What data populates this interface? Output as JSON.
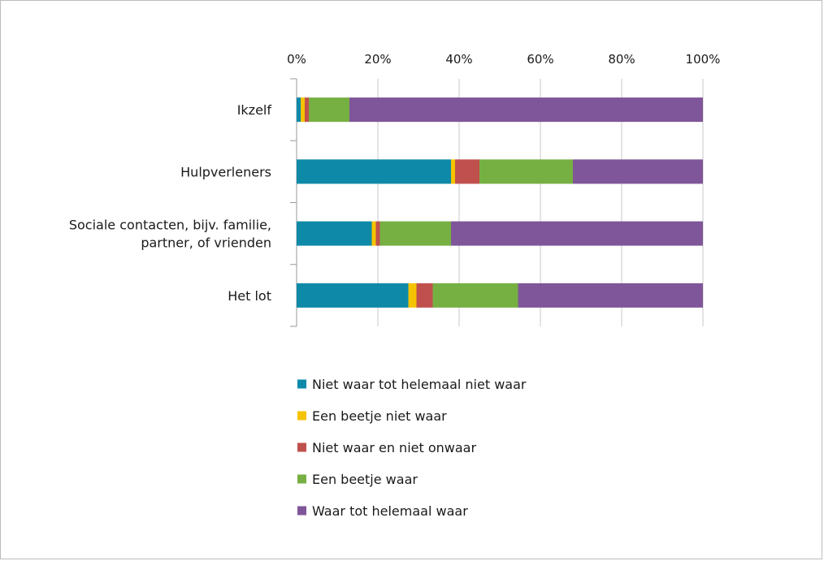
{
  "chart_data": {
    "type": "bar",
    "orientation": "horizontal",
    "stacked": true,
    "percent_stacked": true,
    "categories": [
      "Ikzelf",
      "Hulpverleners",
      "Sociale contacten, bijv. familie, partner, of vrienden",
      "Het lot"
    ],
    "category_lines": [
      [
        "Ikzelf"
      ],
      [
        "Hulpverleners"
      ],
      [
        "Sociale contacten, bijv. familie,",
        "partner, of vrienden"
      ],
      [
        "Het lot"
      ]
    ],
    "series": [
      {
        "name": "Niet waar tot helemaal niet waar",
        "color": "#0e8aa8",
        "values": [
          1,
          38,
          18.5,
          27.5
        ]
      },
      {
        "name": "Een beetje niet waar",
        "color": "#f5c300",
        "values": [
          1,
          1,
          1,
          2
        ]
      },
      {
        "name": "Niet waar en niet onwaar",
        "color": "#c0504d",
        "values": [
          1,
          6,
          1,
          4
        ]
      },
      {
        "name": "Een beetje waar",
        "color": "#76b043",
        "values": [
          10,
          23,
          17.5,
          21
        ]
      },
      {
        "name": "Waar tot helemaal waar",
        "color": "#7f5699",
        "values": [
          87,
          32,
          62,
          45.5
        ]
      }
    ],
    "x_ticks": [
      "0%",
      "20%",
      "40%",
      "60%",
      "80%",
      "100%"
    ],
    "xlim": [
      0,
      100
    ],
    "x_axis_position": "top",
    "grid": true,
    "legend_position": "bottom",
    "title": "",
    "xlabel": "",
    "ylabel": ""
  }
}
